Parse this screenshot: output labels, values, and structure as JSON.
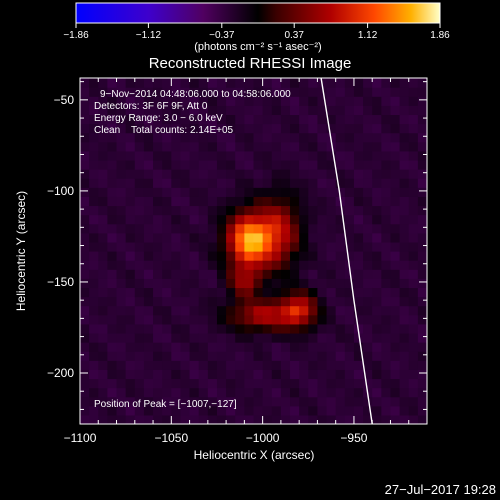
{
  "chart_data": {
    "type": "heatmap",
    "title": "Reconstructed RHESSI Image",
    "xlabel": "Heliocentric X (arcsec)",
    "ylabel": "Heliocentric Y (arcsec)",
    "xlim": [
      -1100,
      -910
    ],
    "ylim": [
      -228,
      -38
    ],
    "x_ticks": [
      -1100,
      -1050,
      -1000,
      -950
    ],
    "y_ticks": [
      -50,
      -100,
      -150,
      -200
    ],
    "x_tick_labels": [
      "−1100",
      "−1050",
      "−1000",
      "−950"
    ],
    "y_tick_labels": [
      "−50",
      "−100",
      "−150",
      "−200"
    ],
    "colorbar": {
      "range": [
        -1.86,
        1.86
      ],
      "ticks": [
        -1.86,
        -1.12,
        -0.37,
        0.37,
        1.12,
        1.86
      ],
      "tick_labels": [
        "−1.86",
        "−1.12",
        "−0.37",
        "0.37",
        "1.12",
        "1.86"
      ],
      "units_text": "(photons cm⁻² s⁻¹ asec⁻²)"
    },
    "annotations": [
      "9−Nov−2014 04:48:06.000 to 04:58:06.000",
      "Detectors: 3F 6F 9F, Att 0",
      "Energy Range: 3.0 − 6.0 keV",
      "Clean    Total counts: 2.14E+05"
    ],
    "peak_text": "Position of Peak = [−1007,−127]",
    "peak": [
      -1007,
      -127
    ],
    "sources": [
      {
        "x": -1007,
        "y": -127,
        "sx": 9,
        "sy": 11,
        "amp": 1.86
      },
      {
        "x": -990,
        "y": -122,
        "sx": 8,
        "sy": 14,
        "amp": 0.9
      },
      {
        "x": -1010,
        "y": -150,
        "sx": 6,
        "sy": 6,
        "amp": 0.75
      },
      {
        "x": -1000,
        "y": -168,
        "sx": 13,
        "sy": 6,
        "amp": 1.0
      },
      {
        "x": -980,
        "y": -165,
        "sx": 7,
        "sy": 7,
        "amp": 1.05
      }
    ],
    "background_level": -0.3,
    "limb": [
      [
        -968,
        -38
      ],
      [
        -958,
        -100
      ],
      [
        -950,
        -160
      ],
      [
        -940,
        -228
      ]
    ]
  },
  "footer": {
    "timestamp": "27−Jul−2017 19:28"
  },
  "colors": {
    "limb": "#ffffff",
    "axes": "#ffffff",
    "background": "#000000"
  }
}
